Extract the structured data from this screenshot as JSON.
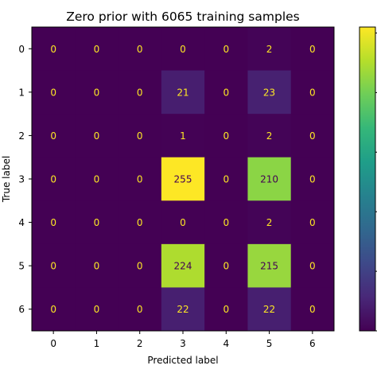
{
  "chart_data": {
    "type": "heatmap",
    "title": "Zero prior with 6065 training samples",
    "xlabel": "Predicted label",
    "ylabel": "True label",
    "x_categories": [
      "0",
      "1",
      "2",
      "3",
      "4",
      "5",
      "6"
    ],
    "y_categories": [
      "0",
      "1",
      "2",
      "3",
      "4",
      "5",
      "6"
    ],
    "values": [
      [
        0,
        0,
        0,
        0,
        0,
        2,
        0
      ],
      [
        0,
        0,
        0,
        21,
        0,
        23,
        0
      ],
      [
        0,
        0,
        0,
        1,
        0,
        2,
        0
      ],
      [
        0,
        0,
        0,
        255,
        0,
        210,
        0
      ],
      [
        0,
        0,
        0,
        0,
        0,
        2,
        0
      ],
      [
        0,
        0,
        0,
        224,
        0,
        215,
        0
      ],
      [
        0,
        0,
        0,
        22,
        0,
        22,
        0
      ]
    ],
    "colormap": "viridis",
    "value_range": [
      0,
      255
    ],
    "colorbar": true,
    "colorbar_placement": "right",
    "grid": false,
    "text_color_dark": "#440154",
    "text_color_light": "#fde725"
  }
}
